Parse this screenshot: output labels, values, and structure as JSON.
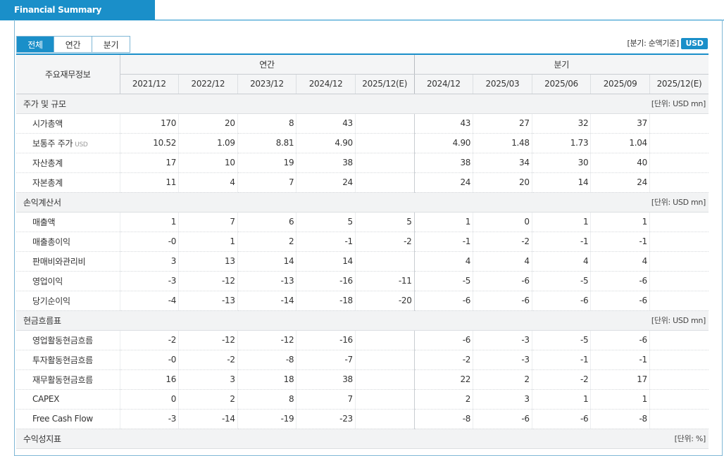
{
  "header": {
    "tab_title": "Financial Summary"
  },
  "tabs": [
    "전체",
    "연간",
    "분기"
  ],
  "basis_label": "[분기: 순액기준]",
  "currency_button": "USD",
  "table": {
    "header": {
      "label": "주요재무정보",
      "groups": [
        {
          "label": "연간",
          "periods": [
            "2021/12",
            "2022/12",
            "2023/12",
            "2024/12",
            "2025/12(E)"
          ]
        },
        {
          "label": "분기",
          "periods": [
            "2024/12",
            "2025/03",
            "2025/06",
            "2025/09",
            "2025/12(E)"
          ]
        }
      ]
    },
    "sections": [
      {
        "title": "주가 및 규모",
        "unit": "[단위: USD mn]",
        "rows": [
          {
            "label": "시가총액",
            "cells": [
              "170",
              "20",
              "8",
              "43",
              null,
              "43",
              "27",
              "32",
              "37",
              null
            ]
          },
          {
            "label": "보통주 주가",
            "unit": "USD",
            "cells": [
              "10.52",
              "1.09",
              "8.81",
              "4.90",
              null,
              "4.90",
              "1.48",
              "1.73",
              "1.04",
              null
            ]
          },
          {
            "label": "자산총계",
            "cells": [
              "17",
              "10",
              "19",
              "38",
              null,
              "38",
              "34",
              "30",
              "40",
              null
            ]
          },
          {
            "label": "자본총계",
            "cells": [
              "11",
              "4",
              "7",
              "24",
              null,
              "24",
              "20",
              "14",
              "24",
              null
            ]
          }
        ]
      },
      {
        "title": "손익계산서",
        "unit": "[단위: USD mn]",
        "rows": [
          {
            "label": "매출액",
            "cells": [
              "1",
              "7",
              "6",
              "5",
              "5",
              "1",
              "0",
              "1",
              "1",
              null
            ]
          },
          {
            "label": "매출총이익",
            "cells": [
              "-0",
              "1",
              "2",
              "-1",
              "-2",
              "-1",
              "-2",
              "-1",
              "-1",
              null
            ]
          },
          {
            "label": "판매비와관리비",
            "cells": [
              "3",
              "13",
              "14",
              "14",
              null,
              "4",
              "4",
              "4",
              "4",
              null
            ]
          },
          {
            "label": "영업이익",
            "cells": [
              "-3",
              "-12",
              "-13",
              "-16",
              "-11",
              "-5",
              "-6",
              "-5",
              "-6",
              null
            ]
          },
          {
            "label": "당기순이익",
            "cells": [
              "-4",
              "-13",
              "-14",
              "-18",
              "-20",
              "-6",
              "-6",
              "-6",
              "-6",
              null
            ]
          }
        ]
      },
      {
        "title": "현금흐름표",
        "unit": "[단위: USD mn]",
        "rows": [
          {
            "label": "영업활동현금흐름",
            "cells": [
              "-2",
              "-12",
              "-12",
              "-16",
              null,
              "-6",
              "-3",
              "-5",
              "-6",
              null
            ]
          },
          {
            "label": "투자활동현금흐름",
            "cells": [
              "-0",
              "-2",
              "-8",
              "-7",
              null,
              "-2",
              "-3",
              "-1",
              "-1",
              null
            ]
          },
          {
            "label": "재무활동현금흐름",
            "cells": [
              "16",
              "3",
              "18",
              "38",
              null,
              "22",
              "2",
              "-2",
              "17",
              null
            ]
          },
          {
            "label": "CAPEX",
            "cells": [
              "0",
              "2",
              "8",
              "7",
              null,
              "2",
              "3",
              "1",
              "1",
              null
            ]
          },
          {
            "label": "Free Cash Flow",
            "cells": [
              "-3",
              "-14",
              "-19",
              "-23",
              null,
              "-8",
              "-6",
              "-6",
              "-8",
              null
            ]
          }
        ]
      },
      {
        "title": "수익성지표",
        "unit": "[단위: %]",
        "rows": []
      }
    ]
  }
}
